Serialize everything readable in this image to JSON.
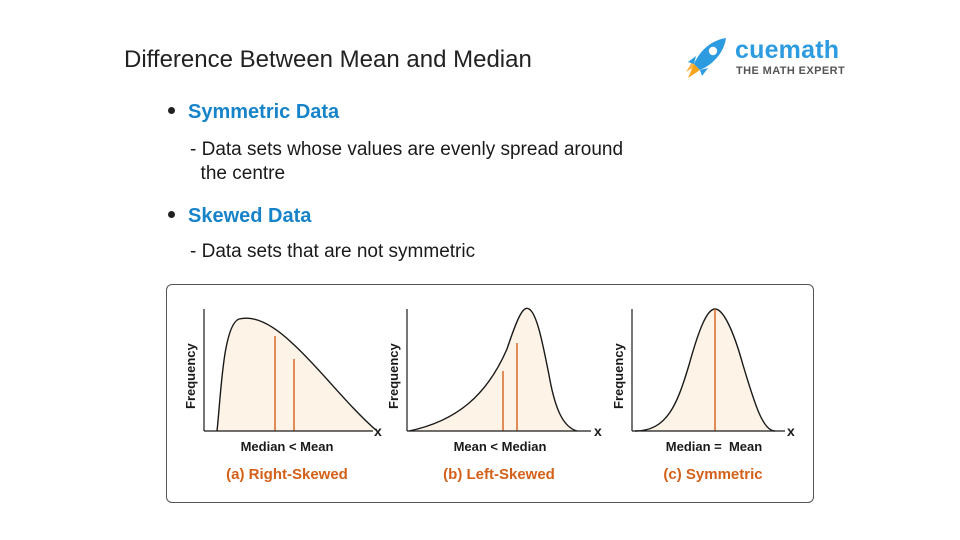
{
  "title": "Difference Between Mean and Median",
  "brand": {
    "name": "cuemath",
    "tagline": "THE MATH EXPERT",
    "colors": {
      "blue": "#2d9be0",
      "orange": "#f7a31c"
    }
  },
  "bullets": [
    {
      "heading": "Symmetric Data",
      "desc_lines": [
        "- Data sets whose values are evenly spread around",
        "  the centre"
      ]
    },
    {
      "heading": "Skewed Data",
      "desc_lines": [
        "- Data sets that are not symmetric"
      ]
    }
  ],
  "colors": {
    "heading": "#1783c9",
    "curve_fill": "#fdf3e6",
    "marker": "#d4601a",
    "caption": "#d4601a"
  },
  "plots": [
    {
      "ylabel": "Frequency",
      "xlabel": "x",
      "relation": "Median < Mean",
      "caption": "(a) Right-Skewed",
      "shape": "right-skewed"
    },
    {
      "ylabel": "Frequency",
      "xlabel": "x",
      "relation": "Mean < Median",
      "caption": "(b) Left-Skewed",
      "shape": "left-skewed"
    },
    {
      "ylabel": "Frequency",
      "xlabel": "x",
      "relation": "Median =  Mean",
      "caption": "(c) Symmetric",
      "shape": "symmetric"
    }
  ]
}
